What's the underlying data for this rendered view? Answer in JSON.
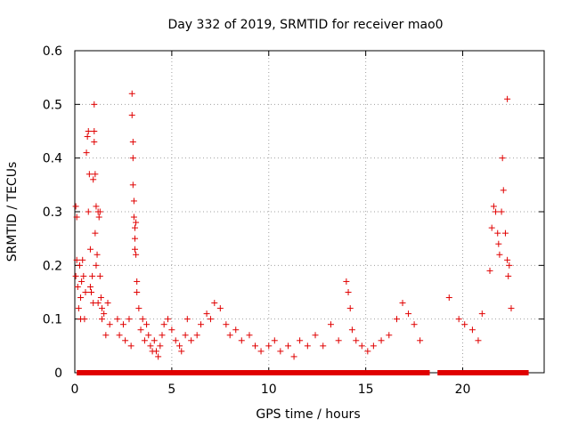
{
  "chart_data": {
    "type": "scatter",
    "title": "Day 332 of 2019, SRMTID for receiver mao0",
    "xlabel": "GPS time / hours",
    "ylabel": "SRMTID / TECUs",
    "xlim": [
      0,
      24.2
    ],
    "ylim": [
      0,
      0.6
    ],
    "xticks": [
      0,
      5,
      10,
      15,
      20
    ],
    "xtick_labels": [
      "0",
      "5",
      "10",
      "15",
      "20"
    ],
    "yticks": [
      0,
      0.1,
      0.2,
      0.3,
      0.4,
      0.5,
      0.6
    ],
    "ytick_labels": [
      "0",
      "0.1",
      "0.2",
      "0.3",
      "0.4",
      "0.5",
      "0.6"
    ],
    "grid": true,
    "marker": "+",
    "color": "#e00000",
    "series": [
      {
        "name": "SRMTID",
        "points": [
          [
            0.05,
            0.31
          ],
          [
            0.05,
            0.18
          ],
          [
            0.1,
            0.21
          ],
          [
            0.1,
            0.29
          ],
          [
            0.15,
            0.16
          ],
          [
            0.2,
            0.12
          ],
          [
            0.25,
            0.2
          ],
          [
            0.3,
            0.14
          ],
          [
            0.3,
            0.1
          ],
          [
            0.35,
            0.17
          ],
          [
            0.4,
            0.21
          ],
          [
            0.45,
            0.18
          ],
          [
            0.5,
            0.1
          ],
          [
            0.55,
            0.15
          ],
          [
            0.6,
            0.41
          ],
          [
            0.65,
            0.44
          ],
          [
            0.7,
            0.45
          ],
          [
            0.7,
            0.3
          ],
          [
            0.75,
            0.37
          ],
          [
            0.8,
            0.23
          ],
          [
            0.8,
            0.16
          ],
          [
            0.85,
            0.15
          ],
          [
            0.9,
            0.18
          ],
          [
            0.95,
            0.36
          ],
          [
            0.95,
            0.13
          ],
          [
            1.0,
            0.5
          ],
          [
            1.0,
            0.45
          ],
          [
            1.0,
            0.43
          ],
          [
            1.05,
            0.37
          ],
          [
            1.05,
            0.26
          ],
          [
            1.1,
            0.31
          ],
          [
            1.1,
            0.2
          ],
          [
            1.15,
            0.22
          ],
          [
            1.2,
            0.3
          ],
          [
            1.2,
            0.13
          ],
          [
            1.25,
            0.29
          ],
          [
            1.3,
            0.3
          ],
          [
            1.3,
            0.18
          ],
          [
            1.35,
            0.14
          ],
          [
            1.4,
            0.12
          ],
          [
            1.4,
            0.1
          ],
          [
            1.5,
            0.11
          ],
          [
            1.6,
            0.07
          ],
          [
            1.7,
            0.13
          ],
          [
            1.8,
            0.09
          ],
          [
            2.2,
            0.1
          ],
          [
            2.3,
            0.07
          ],
          [
            2.5,
            0.09
          ],
          [
            2.6,
            0.06
          ],
          [
            2.8,
            0.1
          ],
          [
            2.9,
            0.05
          ],
          [
            2.95,
            0.52
          ],
          [
            2.95,
            0.48
          ],
          [
            3.0,
            0.43
          ],
          [
            3.0,
            0.4
          ],
          [
            3.0,
            0.35
          ],
          [
            3.05,
            0.32
          ],
          [
            3.05,
            0.29
          ],
          [
            3.1,
            0.27
          ],
          [
            3.1,
            0.25
          ],
          [
            3.1,
            0.23
          ],
          [
            3.15,
            0.22
          ],
          [
            3.15,
            0.28
          ],
          [
            3.2,
            0.15
          ],
          [
            3.2,
            0.17
          ],
          [
            3.3,
            0.12
          ],
          [
            3.4,
            0.08
          ],
          [
            3.5,
            0.1
          ],
          [
            3.6,
            0.06
          ],
          [
            3.7,
            0.09
          ],
          [
            3.8,
            0.07
          ],
          [
            3.9,
            0.05
          ],
          [
            4.0,
            0.04
          ],
          [
            4.1,
            0.06
          ],
          [
            4.2,
            0.04
          ],
          [
            4.3,
            0.03
          ],
          [
            4.4,
            0.05
          ],
          [
            4.5,
            0.07
          ],
          [
            4.6,
            0.09
          ],
          [
            4.8,
            0.1
          ],
          [
            5.0,
            0.08
          ],
          [
            5.2,
            0.06
          ],
          [
            5.4,
            0.05
          ],
          [
            5.5,
            0.04
          ],
          [
            5.7,
            0.07
          ],
          [
            5.8,
            0.1
          ],
          [
            6.0,
            0.06
          ],
          [
            6.3,
            0.07
          ],
          [
            6.5,
            0.09
          ],
          [
            6.8,
            0.11
          ],
          [
            7.0,
            0.1
          ],
          [
            7.2,
            0.13
          ],
          [
            7.5,
            0.12
          ],
          [
            7.8,
            0.09
          ],
          [
            8.0,
            0.07
          ],
          [
            8.3,
            0.08
          ],
          [
            8.6,
            0.06
          ],
          [
            9.0,
            0.07
          ],
          [
            9.3,
            0.05
          ],
          [
            9.6,
            0.04
          ],
          [
            10.0,
            0.05
          ],
          [
            10.3,
            0.06
          ],
          [
            10.6,
            0.04
          ],
          [
            11.0,
            0.05
          ],
          [
            11.3,
            0.03
          ],
          [
            11.6,
            0.06
          ],
          [
            12.0,
            0.05
          ],
          [
            12.4,
            0.07
          ],
          [
            12.8,
            0.05
          ],
          [
            13.2,
            0.09
          ],
          [
            13.6,
            0.06
          ],
          [
            14.0,
            0.17
          ],
          [
            14.1,
            0.15
          ],
          [
            14.2,
            0.12
          ],
          [
            14.3,
            0.08
          ],
          [
            14.5,
            0.06
          ],
          [
            14.8,
            0.05
          ],
          [
            15.1,
            0.04
          ],
          [
            15.4,
            0.05
          ],
          [
            15.8,
            0.06
          ],
          [
            16.2,
            0.07
          ],
          [
            16.6,
            0.1
          ],
          [
            16.9,
            0.13
          ],
          [
            17.2,
            0.11
          ],
          [
            17.5,
            0.09
          ],
          [
            17.8,
            0.06
          ],
          [
            19.3,
            0.14
          ],
          [
            19.8,
            0.1
          ],
          [
            20.1,
            0.09
          ],
          [
            20.5,
            0.08
          ],
          [
            20.8,
            0.06
          ],
          [
            21.0,
            0.11
          ],
          [
            21.4,
            0.19
          ],
          [
            21.5,
            0.27
          ],
          [
            21.6,
            0.31
          ],
          [
            21.7,
            0.3
          ],
          [
            21.8,
            0.26
          ],
          [
            21.85,
            0.24
          ],
          [
            21.9,
            0.22
          ],
          [
            22.0,
            0.3
          ],
          [
            22.05,
            0.4
          ],
          [
            22.1,
            0.34
          ],
          [
            22.2,
            0.26
          ],
          [
            22.3,
            0.51
          ],
          [
            22.3,
            0.21
          ],
          [
            22.35,
            0.18
          ],
          [
            22.4,
            0.2
          ],
          [
            22.5,
            0.12
          ]
        ],
        "zero_intervals": [
          [
            0.1,
            18.3
          ],
          [
            18.7,
            23.4
          ]
        ]
      }
    ]
  }
}
